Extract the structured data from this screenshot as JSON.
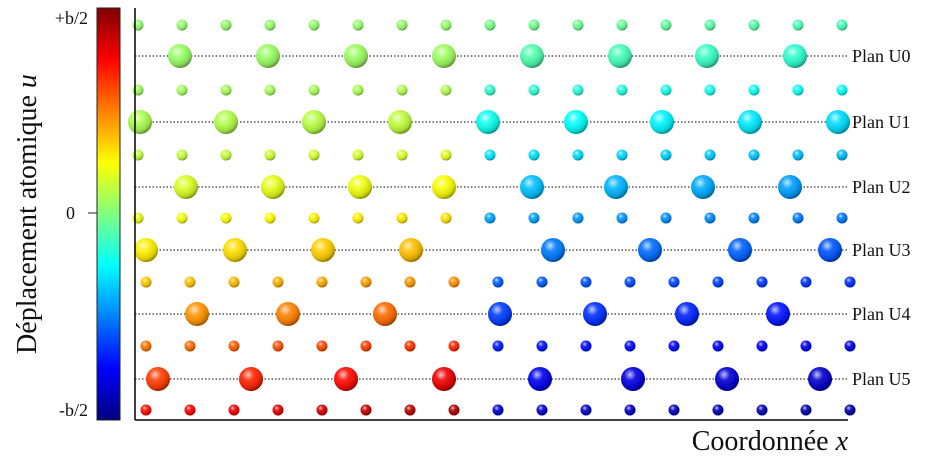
{
  "colorbar": {
    "ticks": [
      "+b/2",
      "0",
      "-b/2"
    ],
    "label": "Déplacement atomique",
    "label_var": "u"
  },
  "x_axis": {
    "label": "Coordonnée",
    "label_var": "x"
  },
  "planes": [
    "Plan U0",
    "Plan U1",
    "Plan U2",
    "Plan U3",
    "Plan U4",
    "Plan U5"
  ]
}
